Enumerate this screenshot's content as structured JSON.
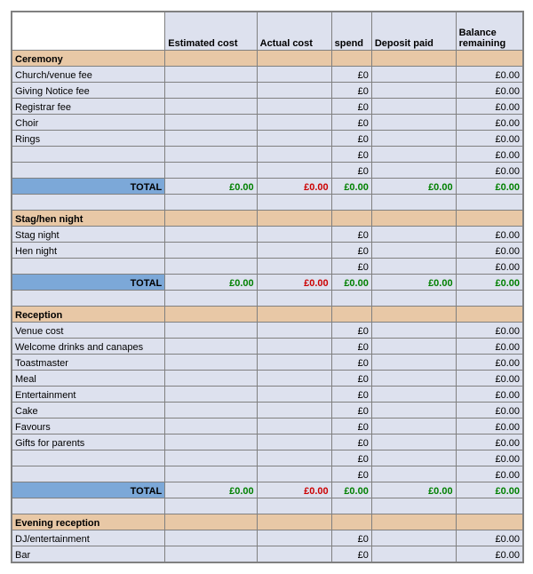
{
  "columns": {
    "name": "",
    "estimated": "Estimated cost",
    "actual": "Actual cost",
    "spend": "spend",
    "deposit": "Deposit paid",
    "balance": "Balance remaining"
  },
  "colors": {
    "grid_bg": "#dde1ee",
    "section_bg": "#e8c8a6",
    "total_label_bg": "#7ca8d8",
    "border": "#808080",
    "positive": "#008000",
    "negative": "#cc0000",
    "header_blank": "#ffffff"
  },
  "sections": [
    {
      "title": "Ceremony",
      "rows": [
        {
          "name": "Church/venue fee",
          "spend": "£0",
          "balance": "£0.00"
        },
        {
          "name": "Giving Notice fee",
          "spend": "£0",
          "balance": "£0.00"
        },
        {
          "name": "Registrar fee",
          "spend": "£0",
          "balance": "£0.00"
        },
        {
          "name": "Choir",
          "spend": "£0",
          "balance": "£0.00"
        },
        {
          "name": "Rings",
          "spend": "£0",
          "balance": "£0.00"
        },
        {
          "name": "",
          "spend": "£0",
          "balance": "£0.00"
        },
        {
          "name": "",
          "spend": "£0",
          "balance": "£0.00"
        }
      ],
      "total": {
        "label": "TOTAL",
        "estimated": "£0.00",
        "actual": "£0.00",
        "spend": "£0.00",
        "deposit": "£0.00",
        "balance": "£0.00"
      }
    },
    {
      "title": "Stag/hen night",
      "rows": [
        {
          "name": "Stag night",
          "spend": "£0",
          "balance": "£0.00"
        },
        {
          "name": "Hen night",
          "spend": "£0",
          "balance": "£0.00"
        },
        {
          "name": "",
          "spend": "£0",
          "balance": "£0.00"
        }
      ],
      "total": {
        "label": "TOTAL",
        "estimated": "£0.00",
        "actual": "£0.00",
        "spend": "£0.00",
        "deposit": "£0.00",
        "balance": "£0.00"
      }
    },
    {
      "title": "Reception",
      "rows": [
        {
          "name": "Venue cost",
          "spend": "£0",
          "balance": "£0.00"
        },
        {
          "name": "Welcome drinks and canapes",
          "spend": "£0",
          "balance": "£0.00"
        },
        {
          "name": "Toastmaster",
          "spend": "£0",
          "balance": "£0.00"
        },
        {
          "name": "Meal",
          "spend": "£0",
          "balance": "£0.00"
        },
        {
          "name": "Entertainment",
          "spend": "£0",
          "balance": "£0.00"
        },
        {
          "name": "Cake",
          "spend": "£0",
          "balance": "£0.00"
        },
        {
          "name": "Favours",
          "spend": "£0",
          "balance": "£0.00"
        },
        {
          "name": "Gifts for parents",
          "spend": "£0",
          "balance": "£0.00"
        },
        {
          "name": "",
          "spend": "£0",
          "balance": "£0.00"
        },
        {
          "name": "",
          "spend": "£0",
          "balance": "£0.00"
        }
      ],
      "total": {
        "label": "TOTAL",
        "estimated": "£0.00",
        "actual": "£0.00",
        "spend": "£0.00",
        "deposit": "£0.00",
        "balance": "£0.00"
      }
    },
    {
      "title": "Evening reception",
      "rows": [
        {
          "name": "DJ/entertainment",
          "spend": "£0",
          "balance": "£0.00"
        },
        {
          "name": "Bar",
          "spend": "£0",
          "balance": "£0.00"
        }
      ],
      "total": null
    }
  ]
}
